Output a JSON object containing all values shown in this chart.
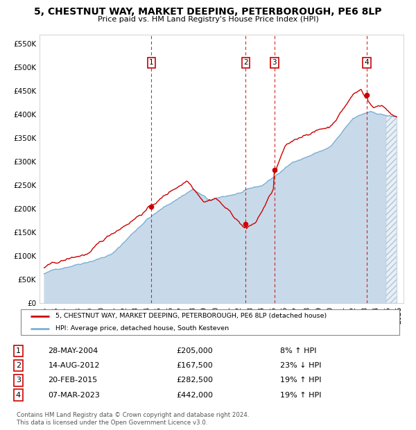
{
  "title": "5, CHESTNUT WAY, MARKET DEEPING, PETERBOROUGH, PE6 8LP",
  "subtitle": "Price paid vs. HM Land Registry's House Price Index (HPI)",
  "legend_line1": "5, CHESTNUT WAY, MARKET DEEPING, PETERBOROUGH, PE6 8LP (detached house)",
  "legend_line2": "HPI: Average price, detached house, South Kesteven",
  "footnote1": "Contains HM Land Registry data © Crown copyright and database right 2024.",
  "footnote2": "This data is licensed under the Open Government Licence v3.0.",
  "hpi_color": "#7bafd4",
  "hpi_fill_color": "#c8daea",
  "price_color": "#cc0000",
  "bg_color": "#f0f4f8",
  "xlabel": "",
  "ylabel": "",
  "ylim": [
    0,
    570000
  ],
  "yticks": [
    0,
    50000,
    100000,
    150000,
    200000,
    250000,
    300000,
    350000,
    400000,
    450000,
    500000,
    550000
  ],
  "ytick_labels": [
    "£0",
    "£50K",
    "£100K",
    "£150K",
    "£200K",
    "£250K",
    "£300K",
    "£350K",
    "£400K",
    "£450K",
    "£500K",
    "£550K"
  ],
  "xlim_start": 1994.6,
  "xlim_end": 2026.4,
  "transactions": [
    {
      "num": 1,
      "date": "28-MAY-2004",
      "price": 205000,
      "x": 2004.38,
      "hpi_pct": "8%",
      "hpi_dir": "↑"
    },
    {
      "num": 2,
      "date": "14-AUG-2012",
      "price": 167500,
      "x": 2012.62,
      "hpi_pct": "23%",
      "hpi_dir": "↓"
    },
    {
      "num": 3,
      "date": "20-FEB-2015",
      "price": 282500,
      "x": 2015.13,
      "hpi_pct": "19%",
      "hpi_dir": "↑"
    },
    {
      "num": 4,
      "date": "07-MAR-2023",
      "price": 442000,
      "x": 2023.18,
      "hpi_pct": "19%",
      "hpi_dir": "↑"
    }
  ]
}
